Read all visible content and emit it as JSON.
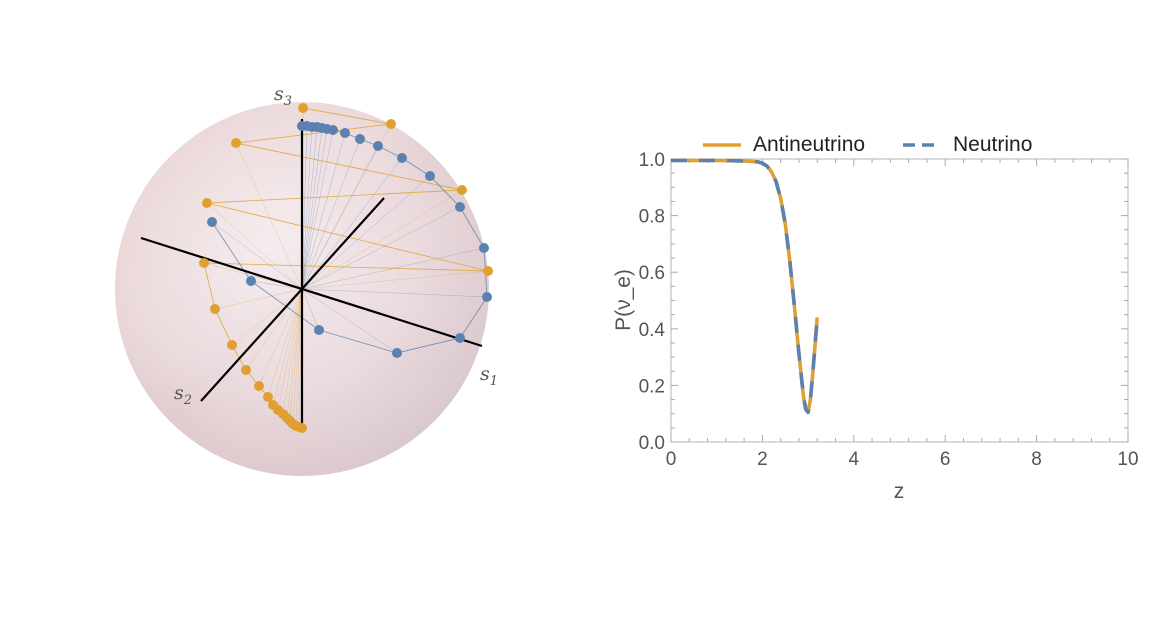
{
  "bloch_sphere": {
    "axis_labels": [
      {
        "base": "s",
        "sub": "3"
      },
      {
        "base": "s",
        "sub": "1"
      },
      {
        "base": "s",
        "sub": "2"
      }
    ],
    "colors": {
      "antineutrino": "#E0A030",
      "neutrino": "#5C81B0",
      "sphere": "#ead8d8",
      "axes": "#000000"
    },
    "antineutrino_points": [
      [
        303,
        108
      ],
      [
        391,
        124
      ],
      [
        236,
        143
      ],
      [
        462,
        190
      ],
      [
        207,
        203
      ],
      [
        488,
        271
      ],
      [
        204,
        263
      ],
      [
        215,
        309
      ],
      [
        232,
        345
      ],
      [
        246,
        370
      ],
      [
        259,
        386
      ],
      [
        268,
        397
      ],
      [
        273,
        405
      ],
      [
        278,
        410
      ],
      [
        283,
        414
      ],
      [
        287,
        418
      ],
      [
        290,
        421
      ],
      [
        293,
        424
      ],
      [
        296,
        426
      ],
      [
        299,
        427
      ],
      [
        302,
        428
      ]
    ],
    "neutrino_points": [
      [
        302,
        126
      ],
      [
        307,
        126
      ],
      [
        312,
        127
      ],
      [
        317,
        127
      ],
      [
        322,
        128
      ],
      [
        327,
        129
      ],
      [
        333,
        130
      ],
      [
        345,
        133
      ],
      [
        360,
        139
      ],
      [
        378,
        146
      ],
      [
        402,
        158
      ],
      [
        430,
        176
      ],
      [
        460,
        207
      ],
      [
        484,
        248
      ],
      [
        487,
        297
      ],
      [
        460,
        338
      ],
      [
        397,
        353
      ],
      [
        319,
        330
      ],
      [
        251,
        281
      ],
      [
        212,
        222
      ]
    ]
  },
  "chart_data": {
    "type": "line",
    "title": "",
    "xlabel": "z",
    "ylabel": "P(ν_e)",
    "xlim": [
      0,
      10
    ],
    "ylim": [
      0,
      1.0
    ],
    "xticks": [
      "0",
      "2",
      "4",
      "6",
      "8",
      "10"
    ],
    "yticks": [
      "0.0",
      "0.2",
      "0.4",
      "0.6",
      "0.8",
      "1.0"
    ],
    "legend_position": "top",
    "series": [
      {
        "name": "Antineutrino",
        "color": "#E0A030",
        "style": "solid",
        "x": [
          0,
          1.0,
          1.6,
          1.9,
          2.0,
          2.1,
          2.2,
          2.3,
          2.4,
          2.5,
          2.6,
          2.7,
          2.8,
          2.9,
          2.95,
          3.0,
          3.05,
          3.1,
          3.15,
          3.2
        ],
        "y": [
          0.995,
          0.995,
          0.993,
          0.99,
          0.985,
          0.975,
          0.955,
          0.92,
          0.86,
          0.77,
          0.64,
          0.48,
          0.31,
          0.16,
          0.115,
          0.105,
          0.15,
          0.24,
          0.34,
          0.44
        ]
      },
      {
        "name": "Neutrino",
        "color": "#5C81B0",
        "style": "dashed",
        "x": [
          0,
          1.0,
          1.6,
          1.9,
          2.0,
          2.1,
          2.2,
          2.3,
          2.4,
          2.5,
          2.6,
          2.7,
          2.8,
          2.9,
          2.95,
          3.0,
          3.05,
          3.1,
          3.15,
          3.2
        ],
        "y": [
          0.995,
          0.995,
          0.993,
          0.99,
          0.985,
          0.975,
          0.955,
          0.92,
          0.86,
          0.77,
          0.64,
          0.48,
          0.31,
          0.16,
          0.115,
          0.105,
          0.15,
          0.24,
          0.34,
          0.44
        ]
      }
    ]
  }
}
